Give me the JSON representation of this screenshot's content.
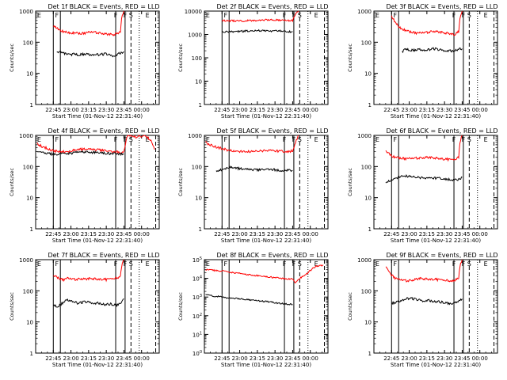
{
  "figure": {
    "x_axis_title": "Start Time (01-Nov-12 22:31:40)",
    "y_axis_title": "Counts/sec",
    "x_ticks": [
      "22:45",
      "23:00",
      "23:15",
      "23:30",
      "23:45",
      "00:00"
    ],
    "marker_labels": [
      "E",
      "F",
      "F",
      "F",
      "S",
      "E"
    ]
  },
  "chart_data": [
    {
      "type": "line",
      "title": "Det 1f BLACK = Events, RED = LLD",
      "xlabel": "Start Time (01-Nov-12 22:31:40)",
      "ylabel": "Counts/sec",
      "y_scale": "log",
      "ylim": [
        1,
        1000
      ],
      "y_ticks": [
        "1",
        "10",
        "100",
        "1000"
      ],
      "x_ticks": [
        "22:45",
        "23:00",
        "23:15",
        "23:30",
        "23:45",
        "00:00"
      ],
      "series": [
        {
          "name": "LLD",
          "color": "#ff0000",
          "x_minutes": [
            0,
            3,
            6,
            9,
            12,
            15,
            18,
            21,
            24,
            27,
            30,
            33,
            36,
            39,
            42,
            45,
            48,
            51,
            54,
            57,
            58,
            60
          ],
          "values": [
            350,
            280,
            240,
            220,
            210,
            200,
            200,
            195,
            190,
            200,
            205,
            210,
            205,
            200,
            195,
            185,
            180,
            175,
            190,
            220,
            600,
            1000
          ]
        },
        {
          "name": "Events",
          "color": "#000000",
          "x_minutes": [
            3,
            6,
            9,
            12,
            15,
            18,
            21,
            24,
            27,
            30,
            33,
            36,
            39,
            42,
            45,
            48,
            51,
            54,
            57,
            60
          ],
          "values": [
            45,
            48,
            44,
            42,
            40,
            42,
            40,
            41,
            42,
            40,
            39,
            41,
            40,
            41,
            42,
            38,
            37,
            40,
            45,
            50
          ]
        }
      ]
    },
    {
      "type": "line",
      "title": "Det 2f BLACK = Events, RED = LLD",
      "xlabel": "Start Time (01-Nov-12 22:31:40)",
      "ylabel": "Counts/sec",
      "y_scale": "log",
      "ylim": [
        1,
        10000
      ],
      "y_ticks": [
        "1",
        "10",
        "100",
        "1000",
        "10000"
      ],
      "x_ticks": [
        "22:45",
        "23:00",
        "23:15",
        "23:30",
        "23:45",
        "00:00"
      ],
      "series": [
        {
          "name": "LLD",
          "color": "#ff0000",
          "x_minutes": [
            0,
            5,
            10,
            15,
            20,
            25,
            30,
            35,
            40,
            45,
            50,
            55,
            60,
            63,
            65
          ],
          "values": [
            4000,
            3900,
            3800,
            3800,
            3900,
            3900,
            4000,
            4100,
            4200,
            4200,
            4100,
            4000,
            4000,
            8000,
            10000
          ]
        },
        {
          "name": "Events",
          "color": "#000000",
          "x_minutes": [
            0,
            5,
            10,
            15,
            20,
            25,
            30,
            35,
            40,
            45,
            50,
            55,
            60
          ],
          "values": [
            1300,
            1300,
            1300,
            1350,
            1400,
            1400,
            1450,
            1450,
            1400,
            1400,
            1400,
            1350,
            1300
          ]
        }
      ]
    },
    {
      "type": "line",
      "title": "Det 3f BLACK = Events, RED = LLD",
      "xlabel": "Start Time (01-Nov-12 22:31:40)",
      "ylabel": "Counts/sec",
      "y_scale": "log",
      "ylim": [
        1,
        1000
      ],
      "y_ticks": [
        "1",
        "10",
        "100",
        "1000"
      ],
      "x_ticks": [
        "22:45",
        "23:00",
        "23:15",
        "23:30",
        "23:45",
        "00:00"
      ],
      "series": [
        {
          "name": "LLD",
          "color": "#ff0000",
          "x_minutes": [
            0,
            3,
            6,
            9,
            12,
            15,
            18,
            21,
            24,
            27,
            30,
            33,
            36,
            39,
            42,
            45,
            48,
            51,
            54,
            57,
            58,
            60
          ],
          "values": [
            700,
            450,
            320,
            270,
            240,
            220,
            210,
            200,
            195,
            200,
            205,
            220,
            230,
            220,
            210,
            200,
            195,
            185,
            180,
            220,
            600,
            1000
          ]
        },
        {
          "name": "Events",
          "color": "#000000",
          "x_minutes": [
            9,
            12,
            15,
            18,
            21,
            24,
            27,
            30,
            33,
            36,
            39,
            42,
            45,
            48,
            51,
            54,
            57,
            60
          ],
          "values": [
            50,
            60,
            58,
            55,
            57,
            58,
            55,
            56,
            60,
            62,
            58,
            56,
            55,
            54,
            52,
            55,
            60,
            62
          ]
        }
      ]
    },
    {
      "type": "line",
      "title": "Det 4f BLACK = Events, RED = LLD",
      "xlabel": "Start Time (01-Nov-12 22:31:40)",
      "ylabel": "Counts/sec",
      "y_scale": "log",
      "ylim": [
        1,
        1000
      ],
      "y_ticks": [
        "1",
        "10",
        "100",
        "1000"
      ],
      "x_ticks": [
        "22:45",
        "23:00",
        "23:15",
        "23:30",
        "23:45",
        "00:00"
      ],
      "series": [
        {
          "name": "LLD",
          "color": "#ff0000",
          "x_minutes": [
            -14,
            -10,
            -5,
            0,
            5,
            10,
            15,
            20,
            25,
            30,
            35,
            40,
            45,
            50,
            55,
            58,
            60,
            63,
            70,
            78,
            83,
            86
          ],
          "values": [
            550,
            450,
            380,
            320,
            300,
            300,
            320,
            340,
            360,
            360,
            350,
            340,
            320,
            300,
            290,
            280,
            320,
            1000,
            900,
            1000,
            700,
            350
          ]
        },
        {
          "name": "Events",
          "color": "#000000",
          "x_minutes": [
            -14,
            -10,
            -5,
            0,
            5,
            10,
            15,
            20,
            25,
            30,
            35,
            40,
            45,
            50,
            55,
            60
          ],
          "values": [
            330,
            280,
            260,
            250,
            250,
            260,
            270,
            280,
            290,
            290,
            285,
            280,
            270,
            260,
            255,
            250
          ]
        }
      ]
    },
    {
      "type": "line",
      "title": "Det 5f BLACK = Events, RED = LLD",
      "xlabel": "Start Time (01-Nov-12 22:31:40)",
      "ylabel": "Counts/sec",
      "y_scale": "log",
      "ylim": [
        1,
        1000
      ],
      "y_ticks": [
        "1",
        "10",
        "100",
        "1000"
      ],
      "x_ticks": [
        "22:45",
        "23:00",
        "23:15",
        "23:30",
        "23:45",
        "00:00"
      ],
      "series": [
        {
          "name": "LLD",
          "color": "#ff0000",
          "x_minutes": [
            -14,
            -10,
            -5,
            0,
            5,
            10,
            15,
            20,
            25,
            30,
            35,
            40,
            45,
            50,
            55,
            60,
            63,
            65
          ],
          "values": [
            600,
            500,
            420,
            380,
            340,
            320,
            310,
            300,
            300,
            310,
            320,
            330,
            320,
            310,
            300,
            320,
            700,
            1000
          ]
        },
        {
          "name": "Events",
          "color": "#000000",
          "x_minutes": [
            -5,
            0,
            5,
            10,
            15,
            20,
            25,
            30,
            35,
            40,
            45,
            50,
            55,
            60
          ],
          "values": [
            70,
            80,
            95,
            90,
            85,
            82,
            80,
            78,
            80,
            82,
            78,
            76,
            75,
            75
          ]
        }
      ]
    },
    {
      "type": "line",
      "title": "Det 6f BLACK = Events, RED = LLD",
      "xlabel": "Start Time (01-Nov-12 22:31:40)",
      "ylabel": "Counts/sec",
      "y_scale": "log",
      "ylim": [
        1,
        1000
      ],
      "y_ticks": [
        "1",
        "10",
        "100",
        "1000"
      ],
      "x_ticks": [
        "22:45",
        "23:00",
        "23:15",
        "23:30",
        "23:45",
        "00:00"
      ],
      "series": [
        {
          "name": "LLD",
          "color": "#ff0000",
          "x_minutes": [
            -5,
            -2,
            0,
            3,
            6,
            9,
            12,
            15,
            18,
            21,
            24,
            27,
            30,
            33,
            36,
            39,
            42,
            45,
            48,
            51,
            54,
            57,
            58,
            60
          ],
          "values": [
            300,
            250,
            220,
            200,
            190,
            185,
            180,
            178,
            180,
            185,
            190,
            195,
            200,
            195,
            190,
            185,
            180,
            175,
            170,
            165,
            170,
            200,
            600,
            1000
          ]
        },
        {
          "name": "Events",
          "color": "#000000",
          "x_minutes": [
            -5,
            0,
            5,
            10,
            15,
            20,
            25,
            30,
            35,
            40,
            45,
            50,
            55,
            60
          ],
          "values": [
            30,
            38,
            45,
            50,
            48,
            45,
            44,
            42,
            43,
            42,
            40,
            38,
            37,
            45
          ]
        }
      ]
    },
    {
      "type": "line",
      "title": "Det 7f BLACK = Events, RED = LLD",
      "xlabel": "Start Time (01-Nov-12 22:31:40)",
      "ylabel": "Counts/sec",
      "y_scale": "log",
      "ylim": [
        1,
        1000
      ],
      "y_ticks": [
        "1",
        "10",
        "100",
        "1000"
      ],
      "x_ticks": [
        "22:45",
        "23:00",
        "23:15",
        "23:30",
        "23:45",
        "00:00"
      ],
      "series": [
        {
          "name": "LLD",
          "color": "#ff0000",
          "x_minutes": [
            0,
            3,
            6,
            9,
            12,
            15,
            18,
            21,
            24,
            27,
            30,
            33,
            36,
            39,
            42,
            45,
            48,
            51,
            54,
            57,
            58,
            60
          ],
          "values": [
            300,
            280,
            240,
            230,
            250,
            240,
            230,
            240,
            250,
            240,
            245,
            250,
            240,
            235,
            240,
            230,
            240,
            250,
            260,
            300,
            600,
            1000
          ]
        },
        {
          "name": "Events",
          "color": "#000000",
          "x_minutes": [
            0,
            3,
            6,
            9,
            12,
            15,
            18,
            21,
            24,
            27,
            30,
            33,
            36,
            39,
            42,
            45,
            48,
            51,
            54,
            57,
            60
          ],
          "values": [
            35,
            32,
            35,
            45,
            50,
            48,
            44,
            40,
            42,
            44,
            43,
            42,
            40,
            40,
            38,
            36,
            38,
            36,
            35,
            42,
            55
          ]
        }
      ]
    },
    {
      "type": "line",
      "title": "Det 8f BLACK = Events, RED = LLD",
      "xlabel": "Start Time (01-Nov-12 22:31:40)",
      "ylabel": "Counts/sec",
      "y_scale": "log",
      "ylim": [
        1,
        100000
      ],
      "y_ticks": [
        "10^0",
        "10^1",
        "10^2",
        "10^3",
        "10^4",
        "10^5"
      ],
      "x_ticks": [
        "22:45",
        "23:00",
        "23:15",
        "23:30",
        "23:45",
        "00:00"
      ],
      "series": [
        {
          "name": "LLD",
          "color": "#ff0000",
          "x_minutes": [
            -14,
            -10,
            -5,
            0,
            5,
            10,
            15,
            20,
            25,
            30,
            35,
            40,
            45,
            50,
            55,
            60,
            62,
            65,
            68,
            72,
            76,
            80,
            86
          ],
          "values": [
            30000,
            28000,
            26000,
            25000,
            22000,
            20000,
            18000,
            16000,
            15000,
            14000,
            13000,
            12000,
            11000,
            10000,
            9500,
            9000,
            6000,
            9000,
            12000,
            18000,
            30000,
            45000,
            50000
          ]
        },
        {
          "name": "Events",
          "color": "#000000",
          "x_minutes": [
            -14,
            -10,
            -5,
            0,
            5,
            10,
            15,
            20,
            25,
            30,
            35,
            40,
            45,
            50,
            55,
            60
          ],
          "values": [
            1300,
            1200,
            1100,
            1000,
            900,
            850,
            800,
            750,
            700,
            650,
            600,
            550,
            500,
            450,
            420,
            400
          ]
        }
      ]
    },
    {
      "type": "line",
      "title": "Det 9f BLACK = Events, RED = LLD",
      "xlabel": "Start Time (01-Nov-12 22:31:40)",
      "ylabel": "Counts/sec",
      "y_scale": "log",
      "ylim": [
        1,
        1000
      ],
      "y_ticks": [
        "1",
        "10",
        "100",
        "1000"
      ],
      "x_ticks": [
        "22:45",
        "23:00",
        "23:15",
        "23:30",
        "23:45",
        "00:00"
      ],
      "series": [
        {
          "name": "LLD",
          "color": "#ff0000",
          "x_minutes": [
            -5,
            -2,
            0,
            3,
            6,
            9,
            12,
            15,
            18,
            21,
            24,
            27,
            30,
            33,
            36,
            39,
            42,
            45,
            48,
            51,
            54,
            57,
            58,
            60
          ],
          "values": [
            600,
            400,
            320,
            260,
            230,
            220,
            210,
            215,
            225,
            240,
            250,
            245,
            240,
            235,
            240,
            230,
            225,
            220,
            215,
            210,
            220,
            250,
            600,
            1000
          ]
        },
        {
          "name": "Events",
          "color": "#000000",
          "x_minutes": [
            0,
            3,
            6,
            9,
            12,
            15,
            18,
            21,
            24,
            27,
            30,
            33,
            36,
            39,
            42,
            45,
            48,
            51,
            54,
            57,
            60
          ],
          "values": [
            40,
            42,
            45,
            50,
            55,
            58,
            56,
            52,
            50,
            48,
            50,
            48,
            46,
            45,
            44,
            42,
            40,
            40,
            42,
            48,
            55
          ]
        }
      ]
    }
  ]
}
